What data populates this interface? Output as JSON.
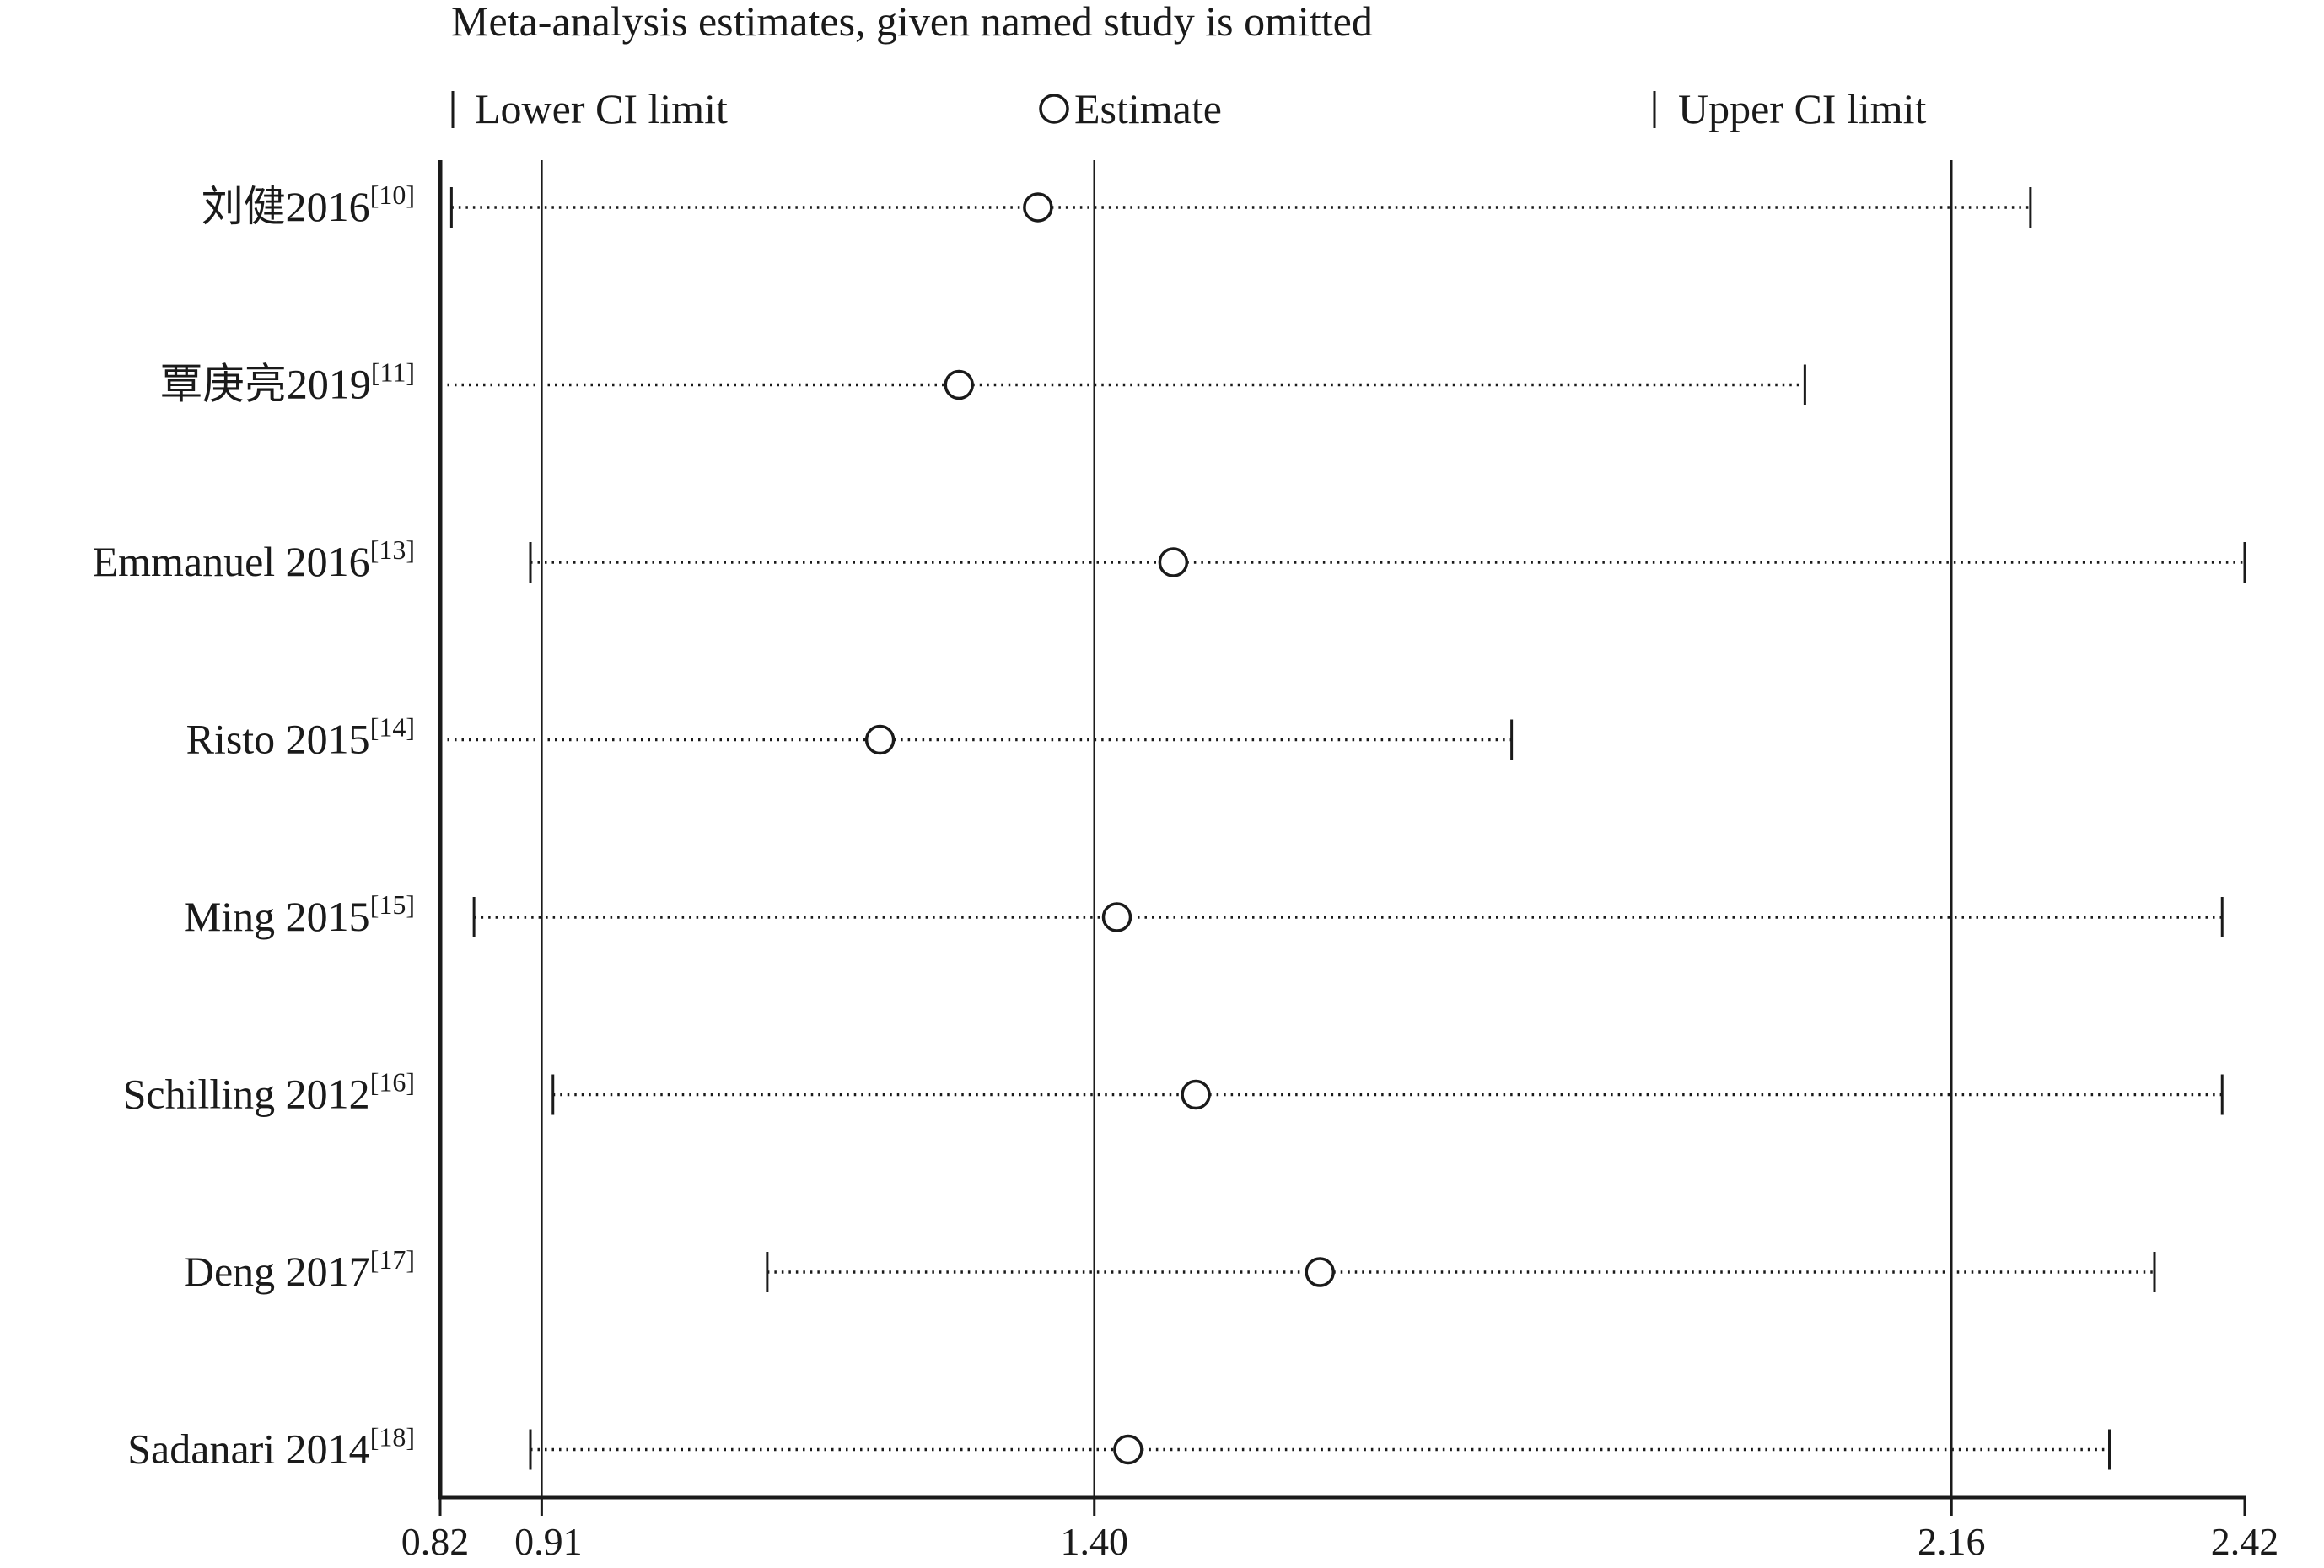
{
  "chart_data": {
    "type": "scatter",
    "title": "Meta-analysis estimates, given named study is omitted",
    "legend": {
      "placement": "top",
      "entries": [
        "Lower CI limit",
        "Estimate",
        "Upper CI limit"
      ]
    },
    "x_ticks": [
      "0.82",
      "0.91",
      "1.40",
      "2.16",
      "2.42"
    ],
    "x_tick_values": [
      0.82,
      0.91,
      1.4,
      2.16,
      2.42
    ],
    "reference_lines": [
      0.91,
      1.4,
      2.16
    ],
    "xlim": [
      0.82,
      2.42
    ],
    "studies": [
      {
        "name": "刘健2016",
        "ref": "[10]",
        "lower": 0.83,
        "estimate": 1.35,
        "upper": 2.23
      },
      {
        "name": "覃庚亮2019",
        "ref": "[11]",
        "lower": 0.82,
        "estimate": 1.28,
        "upper": 2.03
      },
      {
        "name": "Emmanuel 2016",
        "ref": "[13]",
        "lower": 0.9,
        "estimate": 1.47,
        "upper": 2.42
      },
      {
        "name": "Risto 2015",
        "ref": "[14]",
        "lower": 0.82,
        "estimate": 1.21,
        "upper": 1.77
      },
      {
        "name": "Ming 2015",
        "ref": "[15]",
        "lower": 0.85,
        "estimate": 1.42,
        "upper": 2.4
      },
      {
        "name": "Schilling 2012",
        "ref": "[16]",
        "lower": 0.92,
        "estimate": 1.49,
        "upper": 2.4
      },
      {
        "name": "Deng 2017",
        "ref": "[17]",
        "lower": 1.11,
        "estimate": 1.6,
        "upper": 2.34
      },
      {
        "name": "Sadanari 2014",
        "ref": "[18]",
        "lower": 0.9,
        "estimate": 1.43,
        "upper": 2.3
      }
    ]
  }
}
